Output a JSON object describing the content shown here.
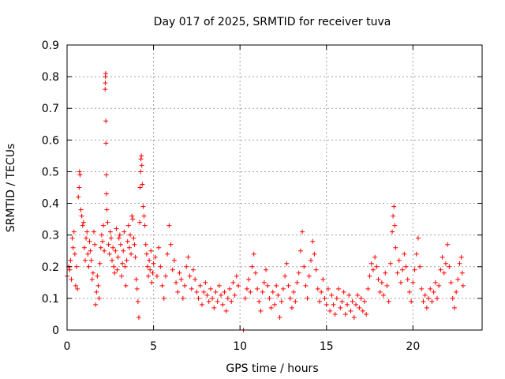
{
  "chart_data": {
    "type": "scatter",
    "title": "Day 017 of 2025, SRMTID for receiver tuva",
    "xlabel": "GPS time / hours",
    "ylabel": "SRMTID / TECUs",
    "xlim": [
      0,
      24
    ],
    "ylim": [
      0,
      0.9
    ],
    "xticks": [
      0,
      5,
      10,
      15,
      20
    ],
    "yticks": [
      0,
      0.1,
      0.2,
      0.3,
      0.4,
      0.5,
      0.6,
      0.7,
      0.8,
      0.9
    ],
    "xtick_labels": [
      "0",
      "5",
      "10",
      "15",
      "20"
    ],
    "ytick_labels": [
      "0",
      "0.1",
      "0.2",
      "0.3",
      "0.4",
      "0.5",
      "0.6",
      "0.7",
      "0.8",
      "0.9"
    ],
    "grid": true,
    "marker": "+",
    "color": "#ff0000",
    "series": [
      {
        "name": "SRMTID",
        "points": [
          [
            0.0,
            0.17
          ],
          [
            0.1,
            0.2
          ],
          [
            0.15,
            0.19
          ],
          [
            0.2,
            0.22
          ],
          [
            0.25,
            0.16
          ],
          [
            0.3,
            0.29
          ],
          [
            0.35,
            0.26
          ],
          [
            0.4,
            0.31
          ],
          [
            0.45,
            0.24
          ],
          [
            0.5,
            0.14
          ],
          [
            0.55,
            0.2
          ],
          [
            0.6,
            0.13
          ],
          [
            0.65,
            0.42
          ],
          [
            0.7,
            0.45
          ],
          [
            0.72,
            0.5
          ],
          [
            0.75,
            0.49
          ],
          [
            0.8,
            0.38
          ],
          [
            0.85,
            0.36
          ],
          [
            0.9,
            0.33
          ],
          [
            0.95,
            0.34
          ],
          [
            1.0,
            0.26
          ],
          [
            1.05,
            0.22
          ],
          [
            1.1,
            0.29
          ],
          [
            1.15,
            0.31
          ],
          [
            1.2,
            0.24
          ],
          [
            1.25,
            0.2
          ],
          [
            1.3,
            0.28
          ],
          [
            1.35,
            0.25
          ],
          [
            1.4,
            0.22
          ],
          [
            1.45,
            0.16
          ],
          [
            1.5,
            0.18
          ],
          [
            1.55,
            0.31
          ],
          [
            1.6,
            0.27
          ],
          [
            1.65,
            0.08
          ],
          [
            1.7,
            0.12
          ],
          [
            1.75,
            0.17
          ],
          [
            1.8,
            0.14
          ],
          [
            1.85,
            0.1
          ],
          [
            1.9,
            0.21
          ],
          [
            1.95,
            0.26
          ],
          [
            2.0,
            0.3
          ],
          [
            2.05,
            0.28
          ],
          [
            2.1,
            0.33
          ],
          [
            2.15,
            0.25
          ],
          [
            2.2,
            0.76
          ],
          [
            2.21,
            0.78
          ],
          [
            2.22,
            0.8
          ],
          [
            2.23,
            0.81
          ],
          [
            2.24,
            0.66
          ],
          [
            2.25,
            0.59
          ],
          [
            2.27,
            0.49
          ],
          [
            2.28,
            0.43
          ],
          [
            2.3,
            0.38
          ],
          [
            2.35,
            0.34
          ],
          [
            2.4,
            0.27
          ],
          [
            2.45,
            0.24
          ],
          [
            2.5,
            0.31
          ],
          [
            2.55,
            0.29
          ],
          [
            2.6,
            0.22
          ],
          [
            2.65,
            0.26
          ],
          [
            2.7,
            0.2
          ],
          [
            2.75,
            0.18
          ],
          [
            2.8,
            0.25
          ],
          [
            2.85,
            0.32
          ],
          [
            2.9,
            0.19
          ],
          [
            2.95,
            0.23
          ],
          [
            3.0,
            0.29
          ],
          [
            3.05,
            0.3
          ],
          [
            3.1,
            0.27
          ],
          [
            3.15,
            0.17
          ],
          [
            3.2,
            0.21
          ],
          [
            3.25,
            0.25
          ],
          [
            3.3,
            0.31
          ],
          [
            3.35,
            0.2
          ],
          [
            3.4,
            0.14
          ],
          [
            3.45,
            0.22
          ],
          [
            3.5,
            0.28
          ],
          [
            3.55,
            0.33
          ],
          [
            3.6,
            0.26
          ],
          [
            3.65,
            0.3
          ],
          [
            3.7,
            0.24
          ],
          [
            3.75,
            0.36
          ],
          [
            3.8,
            0.35
          ],
          [
            3.85,
            0.29
          ],
          [
            3.9,
            0.27
          ],
          [
            3.95,
            0.23
          ],
          [
            4.0,
            0.16
          ],
          [
            4.05,
            0.13
          ],
          [
            4.1,
            0.09
          ],
          [
            4.15,
            0.04
          ],
          [
            4.2,
            0.34
          ],
          [
            4.22,
            0.45
          ],
          [
            4.25,
            0.5
          ],
          [
            4.27,
            0.54
          ],
          [
            4.3,
            0.55
          ],
          [
            4.32,
            0.52
          ],
          [
            4.35,
            0.46
          ],
          [
            4.4,
            0.39
          ],
          [
            4.45,
            0.36
          ],
          [
            4.5,
            0.33
          ],
          [
            4.55,
            0.27
          ],
          [
            4.6,
            0.24
          ],
          [
            4.65,
            0.2
          ],
          [
            4.7,
            0.17
          ],
          [
            4.75,
            0.22
          ],
          [
            4.8,
            0.19
          ],
          [
            4.85,
            0.25
          ],
          [
            4.9,
            0.15
          ],
          [
            4.95,
            0.18
          ],
          [
            5.0,
            0.21
          ],
          [
            5.1,
            0.23
          ],
          [
            5.2,
            0.17
          ],
          [
            5.3,
            0.26
          ],
          [
            5.4,
            0.2
          ],
          [
            5.5,
            0.14
          ],
          [
            5.6,
            0.1
          ],
          [
            5.7,
            0.17
          ],
          [
            5.8,
            0.24
          ],
          [
            5.9,
            0.33
          ],
          [
            6.0,
            0.27
          ],
          [
            6.1,
            0.19
          ],
          [
            6.2,
            0.22
          ],
          [
            6.3,
            0.15
          ],
          [
            6.4,
            0.12
          ],
          [
            6.5,
            0.18
          ],
          [
            6.6,
            0.16
          ],
          [
            6.7,
            0.1
          ],
          [
            6.8,
            0.14
          ],
          [
            6.9,
            0.2
          ],
          [
            7.0,
            0.23
          ],
          [
            7.1,
            0.17
          ],
          [
            7.2,
            0.13
          ],
          [
            7.3,
            0.19
          ],
          [
            7.4,
            0.16
          ],
          [
            7.5,
            0.12
          ],
          [
            7.6,
            0.1
          ],
          [
            7.7,
            0.14
          ],
          [
            7.8,
            0.08
          ],
          [
            7.9,
            0.12
          ],
          [
            8.0,
            0.15
          ],
          [
            8.1,
            0.11
          ],
          [
            8.2,
            0.09
          ],
          [
            8.3,
            0.13
          ],
          [
            8.4,
            0.1
          ],
          [
            8.5,
            0.07
          ],
          [
            8.6,
            0.12
          ],
          [
            8.7,
            0.09
          ],
          [
            8.8,
            0.14
          ],
          [
            8.9,
            0.11
          ],
          [
            9.0,
            0.08
          ],
          [
            9.1,
            0.12
          ],
          [
            9.2,
            0.06
          ],
          [
            9.3,
            0.1
          ],
          [
            9.4,
            0.13
          ],
          [
            9.5,
            0.09
          ],
          [
            9.6,
            0.15
          ],
          [
            9.7,
            0.11
          ],
          [
            9.8,
            0.17
          ],
          [
            9.9,
            0.14
          ],
          [
            10.2,
            0.0
          ],
          [
            10.3,
            0.1
          ],
          [
            10.4,
            0.13
          ],
          [
            10.5,
            0.16
          ],
          [
            10.6,
            0.12
          ],
          [
            10.7,
            0.2
          ],
          [
            10.8,
            0.24
          ],
          [
            10.9,
            0.18
          ],
          [
            11.0,
            0.13
          ],
          [
            11.1,
            0.09
          ],
          [
            11.2,
            0.06
          ],
          [
            11.3,
            0.12
          ],
          [
            11.4,
            0.15
          ],
          [
            11.5,
            0.19
          ],
          [
            11.6,
            0.14
          ],
          [
            11.7,
            0.1
          ],
          [
            11.8,
            0.07
          ],
          [
            11.9,
            0.12
          ],
          [
            12.0,
            0.08
          ],
          [
            12.1,
            0.14
          ],
          [
            12.2,
            0.11
          ],
          [
            12.3,
            0.04
          ],
          [
            12.4,
            0.09
          ],
          [
            12.5,
            0.13
          ],
          [
            12.6,
            0.17
          ],
          [
            12.7,
            0.21
          ],
          [
            12.8,
            0.14
          ],
          [
            12.9,
            0.1
          ],
          [
            13.0,
            0.07
          ],
          [
            13.1,
            0.12
          ],
          [
            13.2,
            0.09
          ],
          [
            13.3,
            0.15
          ],
          [
            13.4,
            0.18
          ],
          [
            13.5,
            0.25
          ],
          [
            13.6,
            0.31
          ],
          [
            13.7,
            0.2
          ],
          [
            13.8,
            0.14
          ],
          [
            13.9,
            0.1
          ],
          [
            14.0,
            0.17
          ],
          [
            14.1,
            0.22
          ],
          [
            14.2,
            0.28
          ],
          [
            14.3,
            0.24
          ],
          [
            14.4,
            0.19
          ],
          [
            14.5,
            0.13
          ],
          [
            14.6,
            0.09
          ],
          [
            14.7,
            0.12
          ],
          [
            14.8,
            0.16
          ],
          [
            14.9,
            0.1
          ],
          [
            15.0,
            0.08
          ],
          [
            15.1,
            0.13
          ],
          [
            15.2,
            0.06
          ],
          [
            15.3,
            0.11
          ],
          [
            15.4,
            0.08
          ],
          [
            15.5,
            0.05
          ],
          [
            15.6,
            0.1
          ],
          [
            15.7,
            0.13
          ],
          [
            15.8,
            0.07
          ],
          [
            15.9,
            0.09
          ],
          [
            16.0,
            0.12
          ],
          [
            16.1,
            0.05
          ],
          [
            16.2,
            0.08
          ],
          [
            16.3,
            0.11
          ],
          [
            16.4,
            0.06
          ],
          [
            16.5,
            0.09
          ],
          [
            16.6,
            0.04
          ],
          [
            16.7,
            0.08
          ],
          [
            16.8,
            0.11
          ],
          [
            16.9,
            0.07
          ],
          [
            17.0,
            0.1
          ],
          [
            17.1,
            0.06
          ],
          [
            17.2,
            0.09
          ],
          [
            17.3,
            0.05
          ],
          [
            17.4,
            0.13
          ],
          [
            17.5,
            0.17
          ],
          [
            17.6,
            0.21
          ],
          [
            17.7,
            0.19
          ],
          [
            17.8,
            0.23
          ],
          [
            17.9,
            0.2
          ],
          [
            18.0,
            0.16
          ],
          [
            18.1,
            0.12
          ],
          [
            18.2,
            0.15
          ],
          [
            18.3,
            0.11
          ],
          [
            18.4,
            0.18
          ],
          [
            18.5,
            0.14
          ],
          [
            18.6,
            0.09
          ],
          [
            18.7,
            0.21
          ],
          [
            18.8,
            0.31
          ],
          [
            18.85,
            0.36
          ],
          [
            18.9,
            0.39
          ],
          [
            18.95,
            0.33
          ],
          [
            19.0,
            0.26
          ],
          [
            19.1,
            0.18
          ],
          [
            19.2,
            0.22
          ],
          [
            19.3,
            0.15
          ],
          [
            19.4,
            0.19
          ],
          [
            19.5,
            0.24
          ],
          [
            19.6,
            0.2
          ],
          [
            19.7,
            0.16
          ],
          [
            19.8,
            0.12
          ],
          [
            19.9,
            0.09
          ],
          [
            20.0,
            0.15
          ],
          [
            20.1,
            0.19
          ],
          [
            20.2,
            0.24
          ],
          [
            20.3,
            0.29
          ],
          [
            20.4,
            0.2
          ],
          [
            20.5,
            0.13
          ],
          [
            20.6,
            0.09
          ],
          [
            20.7,
            0.11
          ],
          [
            20.8,
            0.07
          ],
          [
            20.9,
            0.1
          ],
          [
            21.0,
            0.13
          ],
          [
            21.1,
            0.09
          ],
          [
            21.2,
            0.12
          ],
          [
            21.3,
            0.15
          ],
          [
            21.4,
            0.1
          ],
          [
            21.5,
            0.14
          ],
          [
            21.6,
            0.19
          ],
          [
            21.7,
            0.23
          ],
          [
            21.8,
            0.18
          ],
          [
            21.9,
            0.21
          ],
          [
            22.0,
            0.27
          ],
          [
            22.1,
            0.2
          ],
          [
            22.2,
            0.15
          ],
          [
            22.3,
            0.1
          ],
          [
            22.4,
            0.07
          ],
          [
            22.5,
            0.12
          ],
          [
            22.6,
            0.16
          ],
          [
            22.7,
            0.21
          ],
          [
            22.8,
            0.23
          ],
          [
            22.85,
            0.18
          ],
          [
            22.9,
            0.14
          ]
        ]
      }
    ]
  }
}
